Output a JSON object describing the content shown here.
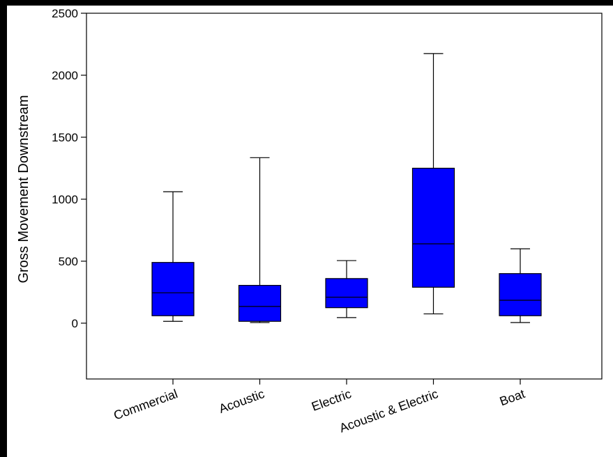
{
  "chart_data": {
    "type": "box",
    "ylabel": "Gross Movement Downstream",
    "xlabel": "",
    "ylim": [
      -450,
      2500
    ],
    "yticks": [
      0,
      500,
      1000,
      1500,
      2000,
      2500
    ],
    "categories": [
      "Commercial",
      "Acoustic",
      "Electric",
      "Acoustic & Electric",
      "Boat"
    ],
    "boxes": [
      {
        "category": "Commercial",
        "whisker_low": 15,
        "q1": 60,
        "median": 245,
        "q3": 490,
        "whisker_high": 1060
      },
      {
        "category": "Acoustic",
        "whisker_low": 5,
        "q1": 15,
        "median": 135,
        "q3": 305,
        "whisker_high": 1335
      },
      {
        "category": "Electric",
        "whisker_low": 45,
        "q1": 125,
        "median": 210,
        "q3": 360,
        "whisker_high": 505
      },
      {
        "category": "Acoustic & Electric",
        "whisker_low": 75,
        "q1": 290,
        "median": 640,
        "q3": 1250,
        "whisker_high": 2175
      },
      {
        "category": "Boat",
        "whisker_low": 5,
        "q1": 60,
        "median": 185,
        "q3": 400,
        "whisker_high": 600
      }
    ],
    "box_color": "#0000ff",
    "line_color": "#000000",
    "grid": false,
    "legend": "none"
  }
}
